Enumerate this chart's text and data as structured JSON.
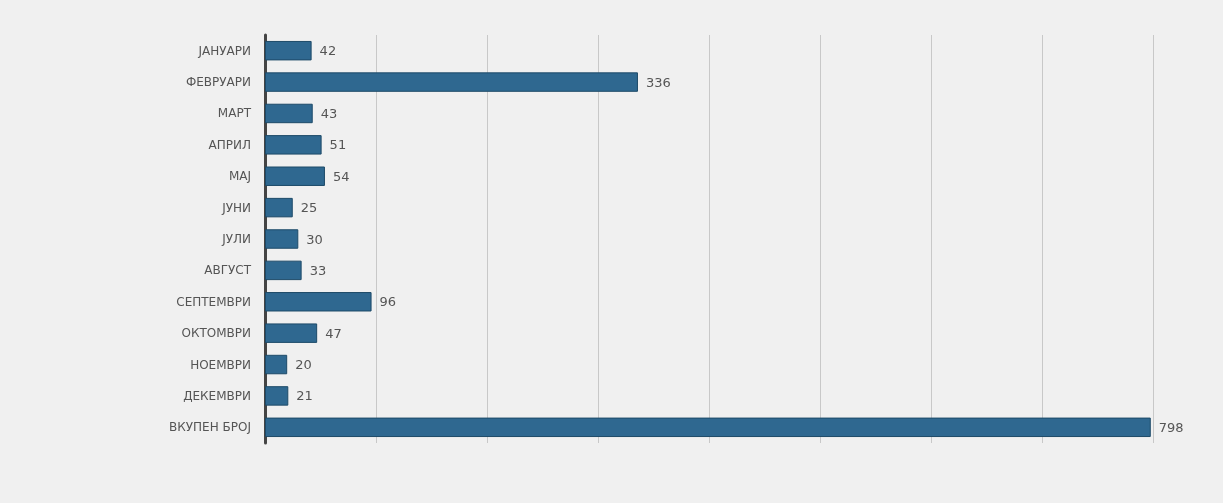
{
  "chart_data": {
    "type": "bar",
    "orientation": "horizontal",
    "categories": [
      "ЈАНУАРИ",
      "ФЕВРУАРИ",
      "МАРТ",
      "АПРИЛ",
      "МАЈ",
      "ЈУНИ",
      "ЈУЛИ",
      "АВГУСТ",
      "СЕПТЕМВРИ",
      "ОКТОМВРИ",
      "НОЕМВРИ",
      "ДЕКЕМВРИ",
      "ВКУПЕН БРОЈ"
    ],
    "values": [
      42,
      336,
      43,
      51,
      54,
      25,
      30,
      33,
      96,
      47,
      20,
      21,
      798
    ],
    "color": "#2f6890",
    "xlim": [
      0,
      800
    ],
    "xticks": [
      {
        "value": 0,
        "label": null
      },
      {
        "value": 100,
        "label": null
      },
      {
        "value": 200,
        "label": null
      },
      {
        "value": 300,
        "label": null
      },
      {
        "value": 400,
        "label": null
      },
      {
        "value": 500,
        "label": null
      },
      {
        "value": 600,
        "label": null
      },
      {
        "value": 700,
        "label": null
      },
      {
        "value": 800,
        "label": null
      }
    ],
    "grid": "x",
    "data_labels": true
  }
}
